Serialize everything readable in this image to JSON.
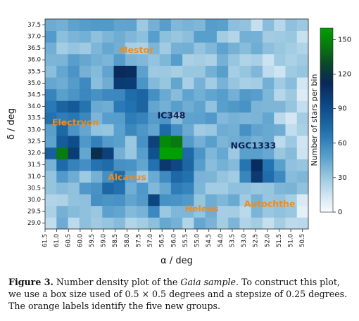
{
  "chart_data": {
    "type": "heatmap",
    "xlabel": "α / deg",
    "ylabel": "δ / deg",
    "x_ticks": [
      "61.5",
      "61.0",
      "60.5",
      "60.0",
      "59.5",
      "59.0",
      "58.5",
      "58.0",
      "57.5",
      "57.0",
      "56.5",
      "56.0",
      "55.5",
      "55.0",
      "54.5",
      "54.0",
      "53.5",
      "53.0",
      "52.5",
      "52.0",
      "51.5",
      "51.0",
      "50.5"
    ],
    "y_ticks": [
      "37.5",
      "37.0",
      "36.5",
      "36.0",
      "35.5",
      "35.0",
      "34.5",
      "34.0",
      "33.5",
      "33.0",
      "32.5",
      "32.0",
      "31.5",
      "31.0",
      "30.5",
      "30.0",
      "29.5",
      "29.0"
    ],
    "xlim": [
      61.5,
      50.25
    ],
    "ylim": [
      28.75,
      37.75
    ],
    "colorbar": {
      "label": "Number of stars per bin",
      "ticks": [
        "0",
        "30",
        "60",
        "90",
        "120",
        "150"
      ],
      "range": [
        0,
        160
      ]
    },
    "features": [
      {
        "ra": 56.1,
        "dec": 32.2,
        "peak": 160,
        "sigma": 0.45
      },
      {
        "ra": 58.0,
        "dec": 35.3,
        "peak": 125,
        "sigma": 0.33
      },
      {
        "ra": 60.6,
        "dec": 32.0,
        "peak": 105,
        "sigma": 0.4
      },
      {
        "ra": 59.0,
        "dec": 31.9,
        "peak": 95,
        "sigma": 0.33
      },
      {
        "ra": 52.3,
        "dec": 31.3,
        "peak": 110,
        "sigma": 0.33
      },
      {
        "ra": 56.7,
        "dec": 29.9,
        "peak": 60,
        "sigma": 0.3
      },
      {
        "ra": 58.5,
        "dec": 30.6,
        "peak": 30,
        "sigma": 0.6
      },
      {
        "ra": 60.5,
        "dec": 33.8,
        "peak": 35,
        "sigma": 0.8
      },
      {
        "ra": 57.5,
        "dec": 34.0,
        "peak": 35,
        "sigma": 0.7
      },
      {
        "ra": 55.5,
        "dec": 31.0,
        "peak": 30,
        "sigma": 0.6
      },
      {
        "ra": 52.5,
        "dec": 33.8,
        "peak": 18,
        "sigma": 0.8
      },
      {
        "ra": 51.3,
        "dec": 30.8,
        "peak": 25,
        "sigma": 0.5
      }
    ],
    "background": 38,
    "annotations": [
      {
        "text": "Mestor",
        "ra": 57.6,
        "dec": 36.4,
        "color": "orange"
      },
      {
        "text": "Electryon",
        "ra": 60.2,
        "dec": 33.3,
        "color": "orange"
      },
      {
        "text": "IC348",
        "ra": 56.1,
        "dec": 33.6,
        "color": "navy"
      },
      {
        "text": "NGC1333",
        "ra": 52.6,
        "dec": 32.3,
        "color": "navy"
      },
      {
        "text": "Alcaeus",
        "ra": 58.0,
        "dec": 30.95,
        "color": "orange"
      },
      {
        "text": "Heleus",
        "ra": 54.8,
        "dec": 29.6,
        "color": "orange"
      },
      {
        "text": "Autochthe",
        "ra": 51.9,
        "dec": 29.8,
        "color": "orange"
      }
    ]
  },
  "caption": {
    "label": "Figure 3.",
    "text_1": " Number density plot of the ",
    "italic": "Gaia sample",
    "text_2": ". To construct this plot, we use a box size used of 0.5 × 0.5 degrees and a stepsize of 0.25 degrees. The orange labels identify the five new groups."
  }
}
